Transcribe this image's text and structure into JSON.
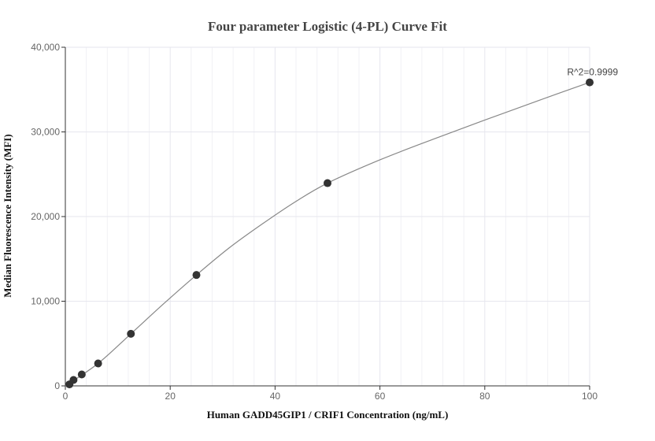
{
  "chart_data": {
    "type": "scatter",
    "title": "Four parameter Logistic (4-PL) Curve Fit",
    "xlabel": "Human GADD45GIP1 / CRIF1 Concentration (ng/mL)",
    "ylabel": "Median Fluorescence Intensity (MFI)",
    "xlim": [
      0,
      100
    ],
    "ylim": [
      0,
      40000
    ],
    "x_ticks": [
      0,
      20,
      40,
      60,
      80,
      100
    ],
    "x_tick_labels": [
      "0",
      "20",
      "40",
      "60",
      "80",
      "100"
    ],
    "y_ticks": [
      0,
      10000,
      20000,
      30000,
      40000
    ],
    "y_tick_labels": [
      "0",
      "10,000",
      "20,000",
      "30,000",
      "40,000"
    ],
    "grid": true,
    "series": [
      {
        "points": [
          {
            "x": 0.78,
            "y": 180
          },
          {
            "x": 1.56,
            "y": 700
          },
          {
            "x": 3.13,
            "y": 1350
          },
          {
            "x": 6.25,
            "y": 2650
          },
          {
            "x": 12.5,
            "y": 6150
          },
          {
            "x": 25,
            "y": 13100
          },
          {
            "x": 50,
            "y": 23950
          },
          {
            "x": 100,
            "y": 35850
          }
        ]
      }
    ],
    "fit_curve": [
      {
        "x": 0,
        "y": 0
      },
      {
        "x": 6.25,
        "y": 2650
      },
      {
        "x": 12.5,
        "y": 6150
      },
      {
        "x": 18.75,
        "y": 9700
      },
      {
        "x": 25,
        "y": 13100
      },
      {
        "x": 31.25,
        "y": 16300
      },
      {
        "x": 37.5,
        "y": 19100
      },
      {
        "x": 43.75,
        "y": 21700
      },
      {
        "x": 50,
        "y": 23950
      },
      {
        "x": 60,
        "y": 26700
      },
      {
        "x": 70,
        "y": 29100
      },
      {
        "x": 80,
        "y": 31400
      },
      {
        "x": 90,
        "y": 33650
      },
      {
        "x": 100,
        "y": 35850
      }
    ],
    "annotation": "R^2=0.9999",
    "colors": {
      "marker": "#333333",
      "curve": "#888888",
      "grid": "#e6e6ee",
      "axis": "#333333"
    }
  }
}
